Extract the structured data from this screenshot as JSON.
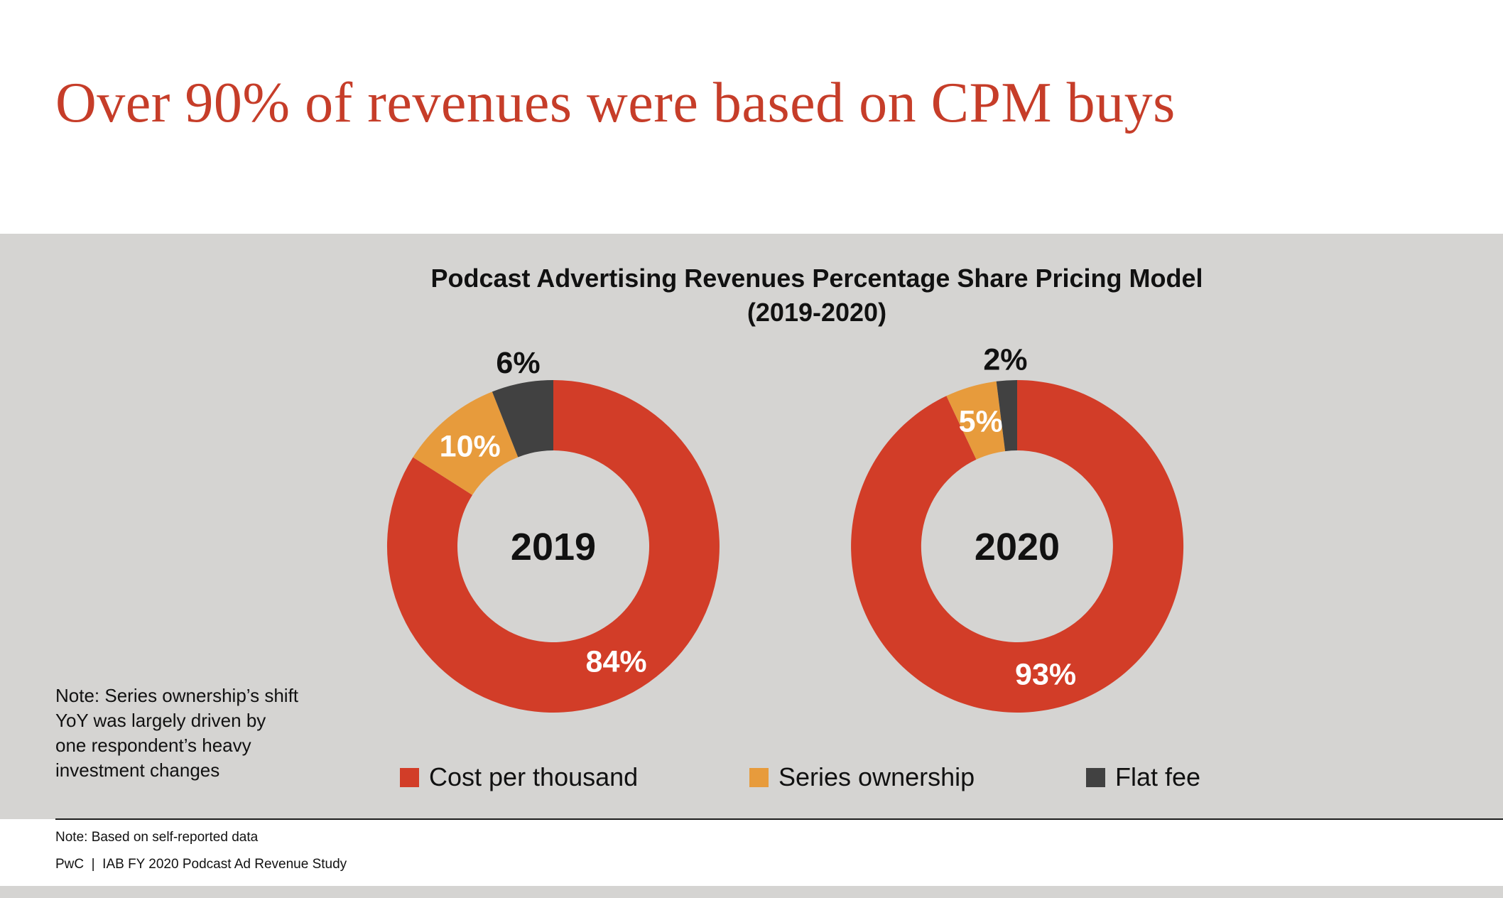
{
  "page": {
    "title": "Over 90% of revenues were based on CPM buys"
  },
  "colors": {
    "title_red": "#C63D29",
    "band_background": "#D5D4D2",
    "cost_per_thousand": "#D23D28",
    "series_ownership": "#E79B3C",
    "flat_fee": "#414141"
  },
  "note": {
    "lines": [
      "Note: Series ownership’s shift",
      "YoY was largely driven by",
      "one respondent’s heavy",
      "investment changes"
    ]
  },
  "footer": {
    "note": "Note: Based on self-reported data",
    "source": "PwC  |  IAB FY 2020 Podcast Ad Revenue Study"
  },
  "chart_data": {
    "type": "pie",
    "variant": "double-donut",
    "title": "Podcast Advertising Revenues Percentage Share Pricing Model (2019-2020)",
    "title_lines": [
      "Podcast Advertising Revenues Percentage Share Pricing Model",
      "(2019-2020)"
    ],
    "categories": [
      "Cost per thousand",
      "Series ownership",
      "Flat fee"
    ],
    "colors": [
      "#D23D28",
      "#E79B3C",
      "#414141"
    ],
    "label_placement": [
      "inside",
      "inside",
      "outside"
    ],
    "legend_position": "bottom",
    "start_angle_deg": 0,
    "direction": "clockwise",
    "series": [
      {
        "name": "2019",
        "values": [
          84,
          10,
          6
        ],
        "labels": [
          "84%",
          "10%",
          "6%"
        ]
      },
      {
        "name": "2020",
        "values": [
          93,
          5,
          2
        ],
        "labels": [
          "93%",
          "5%",
          "2%"
        ]
      }
    ]
  }
}
